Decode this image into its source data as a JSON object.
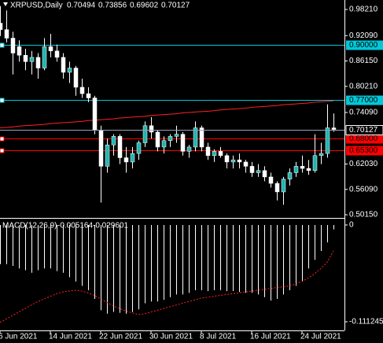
{
  "chart_data": [
    {
      "type": "candlestick",
      "title": "XRPUSD,Daily",
      "categories": [
        "6 Jun 2021",
        null,
        null,
        null,
        null,
        null,
        null,
        null,
        "14 Jun 2021",
        null,
        null,
        null,
        null,
        null,
        null,
        null,
        "22 Jun 2021",
        null,
        null,
        null,
        null,
        null,
        null,
        null,
        "30 Jun 2021",
        null,
        null,
        null,
        null,
        null,
        null,
        null,
        "8 Jul 2021",
        null,
        null,
        null,
        null,
        null,
        null,
        null,
        "16 Jul 2021",
        null,
        null,
        null,
        null,
        null,
        null,
        null,
        "24 Jul 2021",
        null,
        null,
        null,
        null,
        null
      ],
      "open": [
        0.95,
        0.935,
        0.915,
        0.895,
        0.875,
        0.86,
        0.87,
        0.845,
        0.895,
        0.885,
        0.87,
        0.835,
        0.845,
        0.8,
        0.785,
        0.775,
        0.7,
        0.615,
        0.665,
        0.685,
        0.635,
        0.625,
        0.645,
        0.67,
        0.71,
        0.695,
        0.66,
        0.675,
        0.685,
        0.69,
        0.65,
        0.66,
        0.705,
        0.66,
        0.64,
        0.65,
        0.64,
        0.625,
        0.63,
        0.625,
        0.615,
        0.6,
        0.605,
        0.59,
        0.575,
        0.555,
        0.585,
        0.6,
        0.615,
        0.61,
        0.605,
        0.64,
        0.645,
        0.70494
      ],
      "high": [
        0.99,
        0.98,
        0.93,
        0.91,
        0.89,
        0.885,
        0.88,
        0.915,
        0.925,
        0.9,
        0.88,
        0.86,
        0.85,
        0.82,
        0.8,
        0.78,
        0.71,
        0.68,
        0.69,
        0.69,
        0.66,
        0.66,
        0.675,
        0.72,
        0.73,
        0.7,
        0.685,
        0.69,
        0.71,
        0.695,
        0.665,
        0.72,
        0.71,
        0.67,
        0.655,
        0.66,
        0.645,
        0.64,
        0.645,
        0.63,
        0.625,
        0.62,
        0.615,
        0.6,
        0.58,
        0.59,
        0.61,
        0.625,
        0.64,
        0.63,
        0.69,
        0.67,
        0.76,
        0.73856
      ],
      "low": [
        0.92,
        0.905,
        0.83,
        0.86,
        0.84,
        0.83,
        0.82,
        0.84,
        0.87,
        0.86,
        0.82,
        0.81,
        0.78,
        0.775,
        0.765,
        0.69,
        0.53,
        0.6,
        0.64,
        0.62,
        0.6,
        0.61,
        0.63,
        0.66,
        0.68,
        0.65,
        0.645,
        0.66,
        0.67,
        0.64,
        0.635,
        0.65,
        0.65,
        0.63,
        0.625,
        0.635,
        0.61,
        0.61,
        0.61,
        0.6,
        0.59,
        0.59,
        0.58,
        0.565,
        0.535,
        0.525,
        0.57,
        0.59,
        0.6,
        0.595,
        0.6,
        0.62,
        0.635,
        0.69602
      ],
      "close": [
        0.935,
        0.915,
        0.88,
        0.875,
        0.86,
        0.87,
        0.845,
        0.895,
        0.885,
        0.87,
        0.835,
        0.845,
        0.8,
        0.785,
        0.775,
        0.7,
        0.615,
        0.665,
        0.685,
        0.635,
        0.625,
        0.645,
        0.67,
        0.71,
        0.695,
        0.66,
        0.675,
        0.685,
        0.69,
        0.65,
        0.66,
        0.705,
        0.66,
        0.64,
        0.65,
        0.64,
        0.625,
        0.63,
        0.625,
        0.615,
        0.6,
        0.605,
        0.59,
        0.575,
        0.555,
        0.585,
        0.6,
        0.615,
        0.61,
        0.605,
        0.64,
        0.645,
        0.70494,
        0.70127
      ],
      "ma": [
        0.705,
        0.706,
        0.707,
        0.709,
        0.71,
        0.711,
        0.712,
        0.713,
        0.715,
        0.716,
        0.717,
        0.718,
        0.719,
        0.72,
        0.722,
        0.723,
        0.724,
        0.725,
        0.726,
        0.728,
        0.729,
        0.73,
        0.731,
        0.732,
        0.734,
        0.735,
        0.736,
        0.737,
        0.738,
        0.74,
        0.741,
        0.742,
        0.743,
        0.744,
        0.745,
        0.747,
        0.748,
        0.749,
        0.75,
        0.751,
        0.753,
        0.754,
        0.755,
        0.756,
        0.757,
        0.759,
        0.76,
        0.761,
        0.762,
        0.763,
        0.765,
        0.766,
        0.767,
        0.768
      ],
      "ma_color": "#ff2020",
      "up_color": "#1fb5b0",
      "down_color": "#ffffff",
      "wick_color": "#ffffff",
      "ylim": [
        0.4941,
        1.0043
      ],
      "yticks": [
        {
          "value": 0.9821,
          "label": "0.98210"
        },
        {
          "value": 0.9209,
          "label": "0.92090"
        },
        {
          "value": 0.8615,
          "label": "0.86150"
        },
        {
          "value": 0.8021,
          "label": "0.80210"
        },
        {
          "value": 0.7409,
          "label": "0.74090"
        },
        {
          "value": 0.6203,
          "label": "0.62030"
        },
        {
          "value": 0.5609,
          "label": "0.56090"
        },
        {
          "value": 0.5015,
          "label": "0.50150"
        }
      ],
      "levels": [
        {
          "value": 0.9,
          "label": "0.90000",
          "color": "#00c8d8"
        },
        {
          "value": 0.77,
          "label": "0.77000",
          "color": "#00c8d8"
        },
        {
          "value": 0.68,
          "label": "0.68000",
          "color": "#ff0000"
        },
        {
          "value": 0.653,
          "label": "0.65300",
          "color": "#ff0000"
        }
      ],
      "price_line_color": "#9aa0b8"
    },
    {
      "type": "macd",
      "title": "MACD(12,26,9)",
      "values": [
        -0.045,
        -0.045,
        -0.047,
        -0.05,
        -0.052,
        -0.055,
        -0.052,
        -0.05,
        -0.05,
        -0.053,
        -0.055,
        -0.06,
        -0.065,
        -0.07,
        -0.075,
        -0.085,
        -0.098,
        -0.102,
        -0.1,
        -0.101,
        -0.102,
        -0.1,
        -0.097,
        -0.09,
        -0.088,
        -0.088,
        -0.086,
        -0.083,
        -0.08,
        -0.08,
        -0.078,
        -0.075,
        -0.075,
        -0.076,
        -0.075,
        -0.075,
        -0.076,
        -0.076,
        -0.077,
        -0.078,
        -0.078,
        -0.08,
        -0.083,
        -0.087,
        -0.085,
        -0.08,
        -0.075,
        -0.07,
        -0.065,
        -0.05,
        -0.04,
        -0.03,
        -0.02,
        -0.005164
      ],
      "signal": [
        -0.112,
        -0.108,
        -0.104,
        -0.1,
        -0.096,
        -0.092,
        -0.088,
        -0.085,
        -0.082,
        -0.079,
        -0.077,
        -0.076,
        -0.075,
        -0.076,
        -0.078,
        -0.081,
        -0.085,
        -0.089,
        -0.093,
        -0.096,
        -0.099,
        -0.101,
        -0.103,
        -0.102,
        -0.1,
        -0.098,
        -0.096,
        -0.094,
        -0.092,
        -0.09,
        -0.088,
        -0.086,
        -0.084,
        -0.083,
        -0.082,
        -0.081,
        -0.08,
        -0.079,
        -0.078,
        -0.077,
        -0.076,
        -0.075,
        -0.074,
        -0.073,
        -0.072,
        -0.071,
        -0.07,
        -0.068,
        -0.065,
        -0.061,
        -0.056,
        -0.05,
        -0.043,
        -0.029601
      ],
      "color": "#ffffff",
      "signal_color": "#ff2020",
      "ylim": [
        -0.1212,
        0.0072
      ],
      "yticks": [
        0,
        -0.111245
      ]
    }
  ]
}
